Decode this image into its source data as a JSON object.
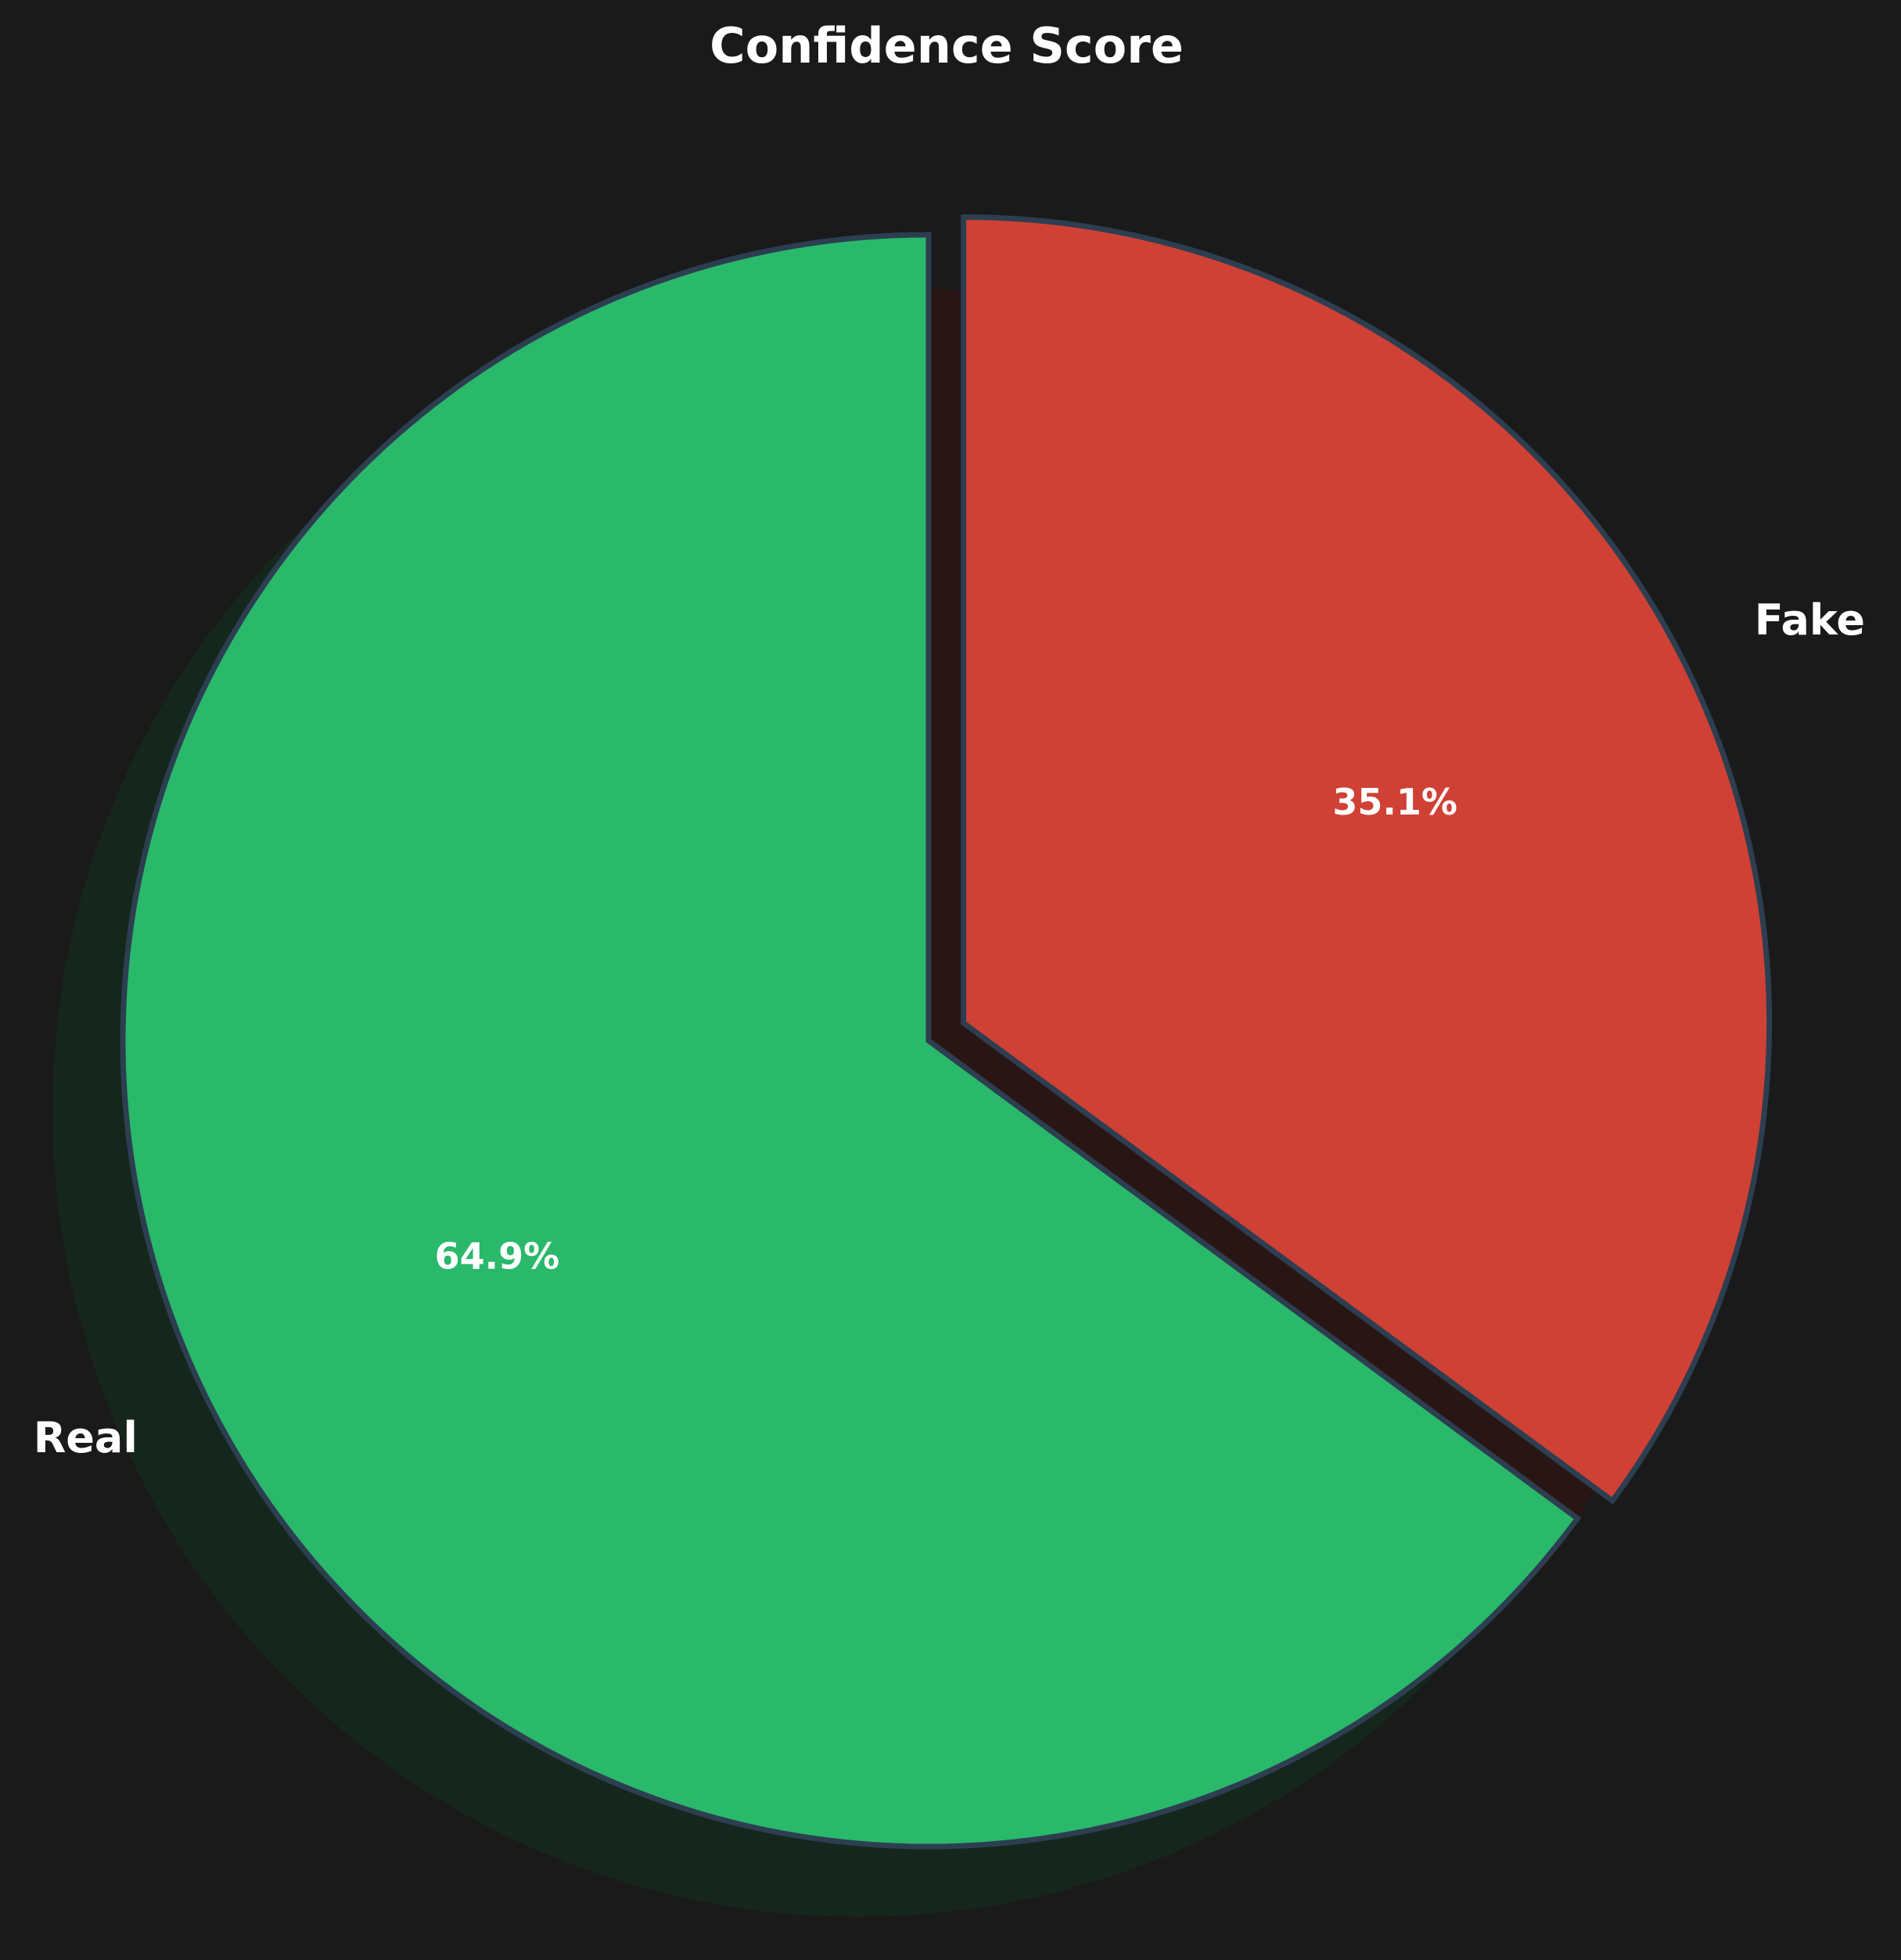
{
  "chart_data": {
    "type": "pie",
    "title": "Confidence Score",
    "slices": [
      {
        "label": "Real",
        "value": 64.9,
        "pct_label": "64.9%",
        "color": "#2ab86a",
        "exploded": false
      },
      {
        "label": "Fake",
        "value": 35.1,
        "pct_label": "35.1%",
        "color": "#cf4134",
        "exploded": true
      }
    ],
    "start_angle": "top",
    "direction": "clockwise from Fake",
    "shadow": true,
    "background_color": "#1a1a1a",
    "edge_color": "#2c3e50",
    "legend": "none"
  }
}
